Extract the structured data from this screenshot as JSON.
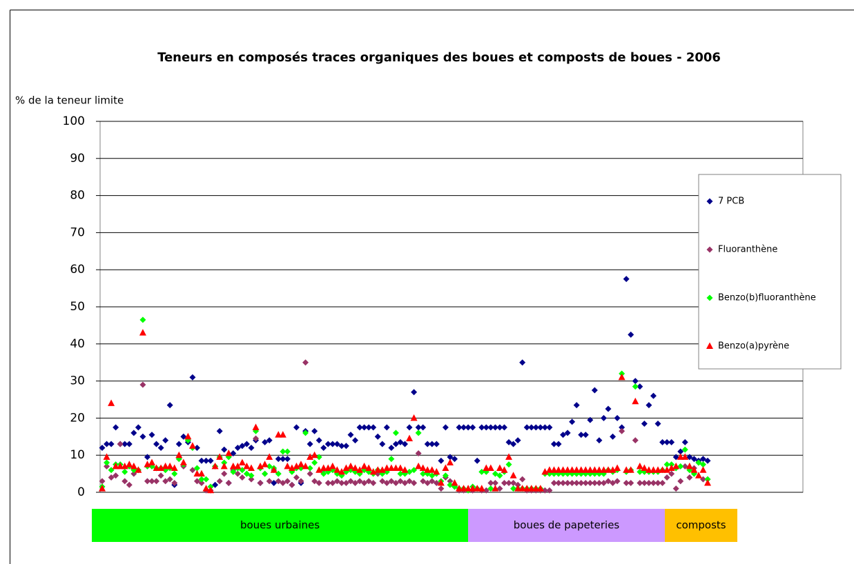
{
  "chart_data": {
    "type": "scatter",
    "title": "Teneurs en composés traces organiques des boues et composts de boues - 2006",
    "y_label": "% de la teneur limite",
    "ylim": [
      0,
      100
    ],
    "yticks": [
      0,
      10,
      20,
      30,
      40,
      50,
      60,
      70,
      80,
      90,
      100
    ],
    "grid": true,
    "legend": "right",
    "series": [
      {
        "name": "7 PCB",
        "color": "#00008b",
        "marker": "diamond",
        "values": [
          12,
          13,
          13,
          17.5,
          13,
          13,
          13,
          16,
          17.5,
          15,
          9.5,
          15.5,
          13,
          12,
          14,
          23.5,
          2,
          13,
          15,
          13.5,
          31,
          12,
          8.5,
          8.5,
          8.5,
          2,
          16.5,
          11.5,
          2.5,
          10.5,
          12,
          12.5,
          13,
          12,
          14,
          2.5,
          13.5,
          14,
          2.5,
          9,
          9,
          9,
          2,
          17.5,
          2.5,
          16.5,
          13,
          16.5,
          14,
          12,
          13,
          13,
          13,
          12.5,
          12.5,
          15.5,
          14,
          17.5,
          17.5,
          17.5,
          17.5,
          15,
          13,
          17.5,
          12,
          13,
          13.5,
          13,
          17.5,
          27,
          17.5,
          17.5,
          13,
          13,
          13,
          8.5,
          17.5,
          9.5,
          9,
          17.5,
          17.5,
          17.5,
          17.5,
          8.5,
          17.5,
          17.5,
          17.5,
          17.5,
          17.5,
          17.5,
          13.5,
          13,
          14,
          35,
          17.5,
          17.5,
          17.5,
          17.5,
          17.5,
          17.5,
          13,
          13,
          15.5,
          16,
          19,
          23.5,
          15.5,
          15.5,
          19.5,
          27.5,
          14,
          20,
          22.5,
          15,
          20,
          17.5,
          57.5,
          42.5,
          30,
          28.5,
          18.5,
          23.5,
          26,
          18.5,
          13.5,
          13.5,
          13.5,
          9.5,
          11,
          13.5,
          9.5,
          9,
          8.5,
          9,
          8.5
        ]
      },
      {
        "name": "Fluoranthène",
        "color": "#993366",
        "marker": "diamond",
        "values": [
          3,
          7,
          4,
          4.5,
          13,
          3,
          2,
          5,
          6,
          29,
          3,
          3,
          3,
          4.5,
          3,
          3.5,
          2.5,
          9,
          7,
          14,
          6,
          3,
          2.5,
          0.5,
          0.5,
          7,
          3,
          5,
          2.5,
          6,
          5,
          4,
          5,
          3.5,
          14.5,
          2.5,
          5,
          3,
          6,
          3,
          2.5,
          3,
          2,
          4,
          3,
          35,
          5,
          3,
          2.5,
          6,
          2.5,
          2.5,
          3,
          2.5,
          2.5,
          3,
          2.5,
          3,
          2.5,
          3,
          2.5,
          5,
          3,
          2.5,
          3,
          2.5,
          3,
          2.5,
          3,
          2.5,
          10.5,
          3,
          2.5,
          3,
          2.5,
          1,
          4,
          3,
          1.5,
          0.5,
          0.5,
          0.5,
          0.5,
          1,
          0.5,
          0.5,
          2.5,
          2.5,
          1,
          2.5,
          2.5,
          2.5,
          2,
          3.5,
          0.5,
          0.5,
          0.5,
          0.5,
          0.5,
          0.5,
          2.5,
          2.5,
          2.5,
          2.5,
          2.5,
          2.5,
          2.5,
          2.5,
          2.5,
          2.5,
          2.5,
          2.5,
          3,
          2.5,
          3,
          16.5,
          2.5,
          2.5,
          14,
          2.5,
          2.5,
          2.5,
          2.5,
          2.5,
          2.5,
          4,
          5,
          1,
          3,
          7,
          4,
          6.5,
          8,
          3.5,
          3.5
        ]
      },
      {
        "name": "Benzo(b)fluoranthène",
        "color": "#00ff00",
        "marker": "diamond",
        "values": [
          1.5,
          8,
          6,
          7.5,
          7.5,
          5.5,
          7,
          6,
          6,
          46.5,
          7,
          7,
          6.5,
          6.5,
          6,
          6.5,
          5,
          9,
          7.5,
          14,
          12,
          6.5,
          3.5,
          3.5,
          1.5,
          7,
          9.5,
          8,
          9.5,
          5.5,
          6.5,
          6,
          5,
          4.5,
          16.5,
          6.5,
          5,
          7,
          6.5,
          5,
          11,
          11,
          5.5,
          6.5,
          6.5,
          16,
          6.5,
          8,
          9.5,
          5,
          5.5,
          6,
          5,
          4.5,
          5.5,
          6,
          5.5,
          5,
          6,
          5.5,
          5,
          6,
          5,
          5.5,
          9,
          16,
          5,
          5,
          5.5,
          6,
          16,
          5,
          5,
          4.5,
          5,
          3,
          4.5,
          2,
          1.5,
          1,
          1,
          0.5,
          1.5,
          1,
          5.5,
          5.5,
          1,
          5,
          4.5,
          5.5,
          7.5,
          1,
          1,
          1,
          1,
          1,
          1,
          1,
          5,
          5,
          5,
          5,
          5,
          5,
          5,
          5,
          5,
          5,
          5,
          5,
          5,
          5,
          6,
          5.5,
          6,
          32,
          5.5,
          6,
          28.5,
          5.5,
          5.5,
          5.5,
          5.5,
          5.5,
          6,
          7.5,
          7.5,
          6.5,
          7,
          11.5,
          6,
          5,
          8,
          7.5,
          3.5
        ]
      },
      {
        "name": "Benzo(a)pyrène",
        "color": "#ff0000",
        "marker": "triangle",
        "values": [
          1,
          9.5,
          24,
          7,
          7,
          7,
          7.5,
          7,
          6,
          43,
          7.5,
          8,
          6.5,
          6.5,
          7,
          7,
          6.5,
          10,
          8,
          15,
          12.5,
          5,
          5,
          1,
          0.5,
          7,
          9.5,
          7,
          10.5,
          7,
          7,
          8,
          7,
          6.5,
          17.5,
          7,
          7.5,
          9.5,
          6,
          15.5,
          15.5,
          7,
          6.5,
          7,
          7.5,
          7,
          9.5,
          10,
          6,
          6.5,
          6.5,
          7,
          6,
          5.5,
          6.5,
          7,
          6.5,
          6,
          7,
          6.5,
          5.5,
          6,
          6,
          6.5,
          6.5,
          6.5,
          6.5,
          6,
          14.5,
          20,
          7,
          6.5,
          6,
          6,
          5.5,
          2.5,
          6.5,
          8,
          2.5,
          1,
          1,
          1,
          1,
          1,
          1,
          6.5,
          6.5,
          1,
          6.5,
          6,
          9.5,
          4.5,
          1,
          1,
          1,
          1,
          1,
          1,
          5.5,
          6,
          6,
          6,
          6,
          6,
          6,
          6,
          6,
          6,
          6,
          6,
          6,
          6,
          6,
          6,
          6.5,
          31,
          6,
          6,
          24.5,
          7,
          6.5,
          6,
          6,
          6,
          6,
          6,
          6.5,
          7,
          9.5,
          9.5,
          7,
          6,
          4.5,
          6,
          2.5
        ]
      }
    ],
    "groups": [
      {
        "label": "boues urbaines",
        "color": "#00ff00"
      },
      {
        "label": "boues de papeteries",
        "color": "#cc99ff"
      },
      {
        "label": "composts",
        "color": "#ffc000"
      }
    ]
  }
}
